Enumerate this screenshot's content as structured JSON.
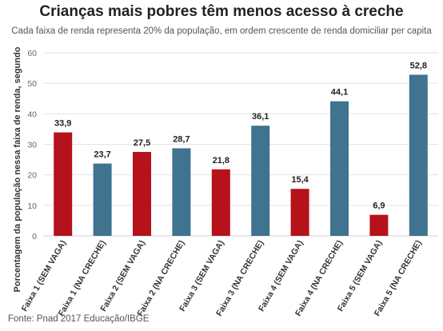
{
  "header": {
    "title": "Crianças mais pobres têm menos acesso à creche",
    "subtitle": "Cada faixa de renda representa 20% da população, em ordem crescente de renda domiciliar per capita"
  },
  "footer": {
    "source": "Fonte: Pnad 2017 Educação/IBGE"
  },
  "chart_data": {
    "type": "bar",
    "title": "Crianças mais pobres têm menos acesso à creche",
    "subtitle": "Cada faixa de renda representa 20% da população, em ordem crescente de renda domiciliar per capita",
    "xlabel": "",
    "ylabel": "Porcentagem da população nessa faixa de renda, segundo",
    "ylim": [
      0,
      60
    ],
    "yticks": [
      0,
      10,
      20,
      30,
      40,
      50,
      60
    ],
    "grid": true,
    "categories": [
      "Faixa 1 (SEM VAGA)",
      "Faixa 1 (NA CRECHE)",
      "Faixa 2 (SEM VAGA)",
      "Faixa 2 (NA CRECHE)",
      "Faixa 3 (SEM VAGA)",
      "Faixa 3 (NA CRECHE)",
      "Faixa 4 (SEM VAGA)",
      "Faixa 4 (NA CRECHE)",
      "Faixa 5 (SEM VAGA)",
      "Faixa 5 (NA CRECHE)"
    ],
    "values": [
      33.9,
      23.7,
      27.5,
      28.7,
      21.8,
      36.1,
      15.4,
      44.1,
      6.9,
      52.8
    ],
    "value_labels": [
      "33,9",
      "23,7",
      "27,5",
      "28,7",
      "21,8",
      "36,1",
      "15,4",
      "44,1",
      "6,9",
      "52,8"
    ],
    "colors": [
      "#b5121b",
      "#3f7390",
      "#b5121b",
      "#3f7390",
      "#b5121b",
      "#3f7390",
      "#b5121b",
      "#3f7390",
      "#b5121b",
      "#3f7390"
    ]
  }
}
